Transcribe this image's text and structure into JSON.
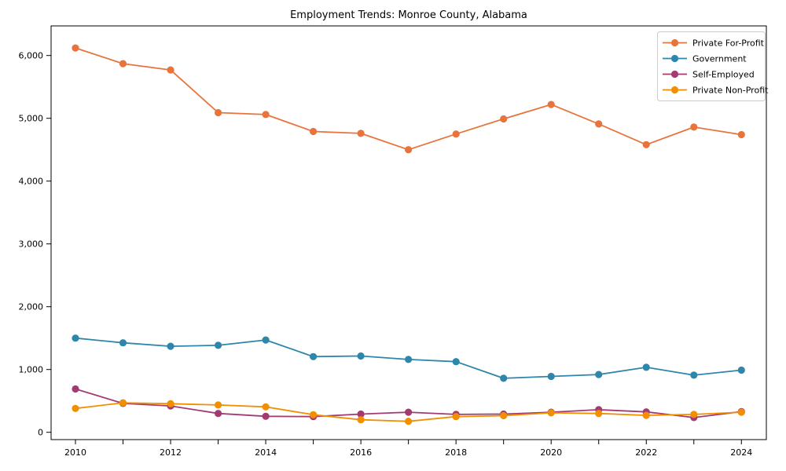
{
  "chart_data": {
    "type": "line",
    "title": "Employment Trends: Monroe County, Alabama",
    "xlabel": "",
    "ylabel": "",
    "x": [
      2010,
      2011,
      2012,
      2013,
      2014,
      2015,
      2016,
      2017,
      2018,
      2019,
      2020,
      2021,
      2022,
      2023,
      2024
    ],
    "x_labeled_ticks": [
      2010,
      2012,
      2014,
      2016,
      2018,
      2020,
      2022,
      2024
    ],
    "yticks": [
      0,
      1000,
      2000,
      3000,
      4000,
      5000,
      6000
    ],
    "ytick_labels": [
      "0",
      "1,000",
      "2,000",
      "3,000",
      "4,000",
      "5,000",
      "6,000"
    ],
    "ylim": [
      -120,
      6460
    ],
    "grid": false,
    "legend_position": "upper right",
    "series": [
      {
        "name": "Private For-Profit",
        "color": "#E8743B",
        "values": [
          6120,
          5870,
          5770,
          5090,
          5060,
          4790,
          4760,
          4500,
          4750,
          4990,
          5220,
          4910,
          4580,
          4860,
          4740
        ]
      },
      {
        "name": "Government",
        "color": "#2E86AB",
        "values": [
          1500,
          1425,
          1370,
          1385,
          1470,
          1205,
          1215,
          1160,
          1125,
          860,
          890,
          920,
          1035,
          910,
          990
        ]
      },
      {
        "name": "Self-Employed",
        "color": "#A23B72",
        "values": [
          690,
          460,
          420,
          300,
          255,
          250,
          290,
          320,
          285,
          290,
          320,
          360,
          325,
          235,
          330
        ]
      },
      {
        "name": "Private Non-Profit",
        "color": "#F18F01",
        "values": [
          380,
          470,
          455,
          435,
          405,
          280,
          200,
          175,
          250,
          265,
          310,
          300,
          270,
          285,
          320
        ]
      }
    ]
  }
}
